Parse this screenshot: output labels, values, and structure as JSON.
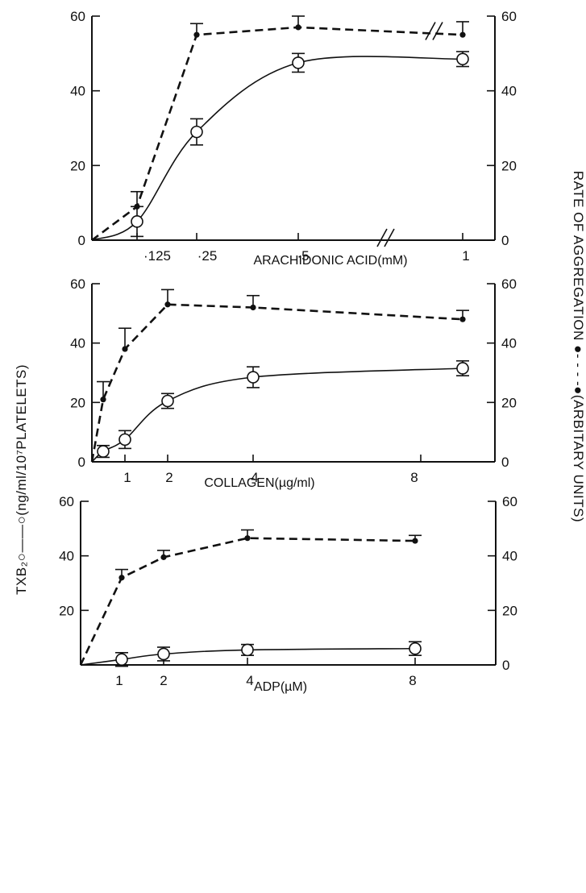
{
  "chart_data": [
    {
      "type": "line",
      "xlabel": "ARACHIDONIC ACID(mM)",
      "x_tick_labels": [
        "·125",
        "·25",
        "·5",
        "1"
      ],
      "axis_break": "between 0.5 and 1",
      "ylim_left": [
        0,
        60
      ],
      "ylim_right": [
        0,
        60
      ],
      "y_ticks": [
        0,
        20,
        40,
        60
      ],
      "series": [
        {
          "style": "dashed line, filled circles",
          "axis": "right",
          "x": [
            0.1,
            0.125,
            0.25,
            0.5,
            1
          ],
          "y": [
            0,
            9,
            55,
            57,
            55
          ],
          "err": [
            null,
            4,
            3,
            3,
            3.5
          ]
        },
        {
          "style": "solid line, open circles",
          "axis": "left",
          "x": [
            0.1,
            0.125,
            0.25,
            0.5,
            1
          ],
          "y": [
            0,
            5,
            29,
            47.5,
            48.5
          ],
          "err": [
            null,
            4,
            3.5,
            2.5,
            2
          ]
        }
      ]
    },
    {
      "type": "line",
      "xlabel": "COLLAGEN(µg/ml)",
      "x_tick_labels": [
        "1",
        "2",
        "4",
        "8"
      ],
      "ylim_left": [
        0,
        60
      ],
      "ylim_right": [
        0,
        60
      ],
      "y_ticks": [
        0,
        20,
        40,
        60
      ],
      "series": [
        {
          "style": "dashed line, filled circles",
          "axis": "right",
          "x": [
            0,
            0.5,
            1,
            2,
            4,
            9
          ],
          "y": [
            0,
            21,
            38,
            53,
            52,
            48
          ],
          "err": [
            null,
            6,
            7,
            5,
            4,
            3
          ]
        },
        {
          "style": "solid line, open circles",
          "axis": "left",
          "x": [
            0,
            0.5,
            1,
            2,
            4,
            9
          ],
          "y": [
            0,
            3.5,
            7.5,
            20.5,
            28.5,
            31.5
          ],
          "err": [
            null,
            2,
            3,
            2.5,
            3.5,
            2.5
          ]
        }
      ]
    },
    {
      "type": "line",
      "xlabel": "ADP(µM)",
      "x_tick_labels": [
        "1",
        "2",
        "4",
        "8"
      ],
      "ylim_left": [
        0,
        60
      ],
      "ylim_right": [
        0,
        60
      ],
      "y_ticks": [
        0,
        20,
        40,
        60
      ],
      "y_tick_labels_left": [
        "",
        "20",
        "40",
        "60"
      ],
      "series": [
        {
          "style": "dashed line, filled circles",
          "axis": "right",
          "x": [
            0,
            1,
            2,
            4,
            8
          ],
          "y": [
            0,
            32,
            39.5,
            46.5,
            45.5
          ],
          "err": [
            null,
            3,
            2.5,
            3,
            2
          ]
        },
        {
          "style": "solid line, open circles",
          "axis": "left",
          "x": [
            0,
            1,
            2,
            4,
            8
          ],
          "y": [
            0,
            2,
            4,
            5.5,
            6
          ],
          "err": [
            null,
            2.5,
            2.5,
            2,
            2.5
          ]
        }
      ]
    }
  ],
  "left_ylabel": "TXB₂○——○(ng/ml/10⁷PLATELETS)",
  "right_ylabel": "RATE OF AGGREGATION ●- - - -●(ARBITARY UNITS)"
}
